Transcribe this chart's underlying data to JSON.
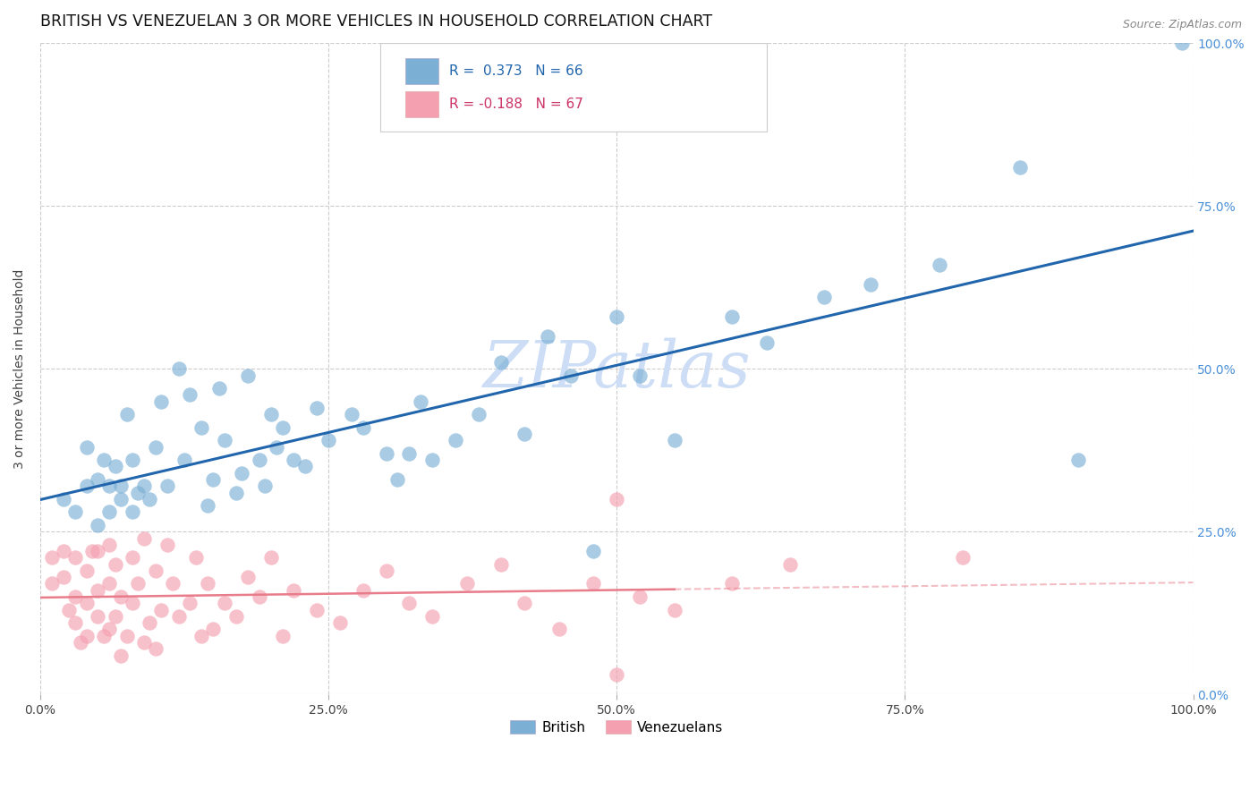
{
  "title": "BRITISH VS VENEZUELAN 3 OR MORE VEHICLES IN HOUSEHOLD CORRELATION CHART",
  "source": "Source: ZipAtlas.com",
  "ylabel": "3 or more Vehicles in Household",
  "x_tick_labels": [
    "0.0%",
    "25.0%",
    "50.0%",
    "75.0%",
    "100.0%"
  ],
  "y_tick_labels_right": [
    "0.0%",
    "25.0%",
    "50.0%",
    "75.0%",
    "100.0%"
  ],
  "xlim": [
    0.0,
    1.0
  ],
  "ylim": [
    0.0,
    1.0
  ],
  "british_R": 0.373,
  "british_N": 66,
  "venezuelan_R": -0.188,
  "venezuelan_N": 67,
  "british_scatter_color": "#7bafd4",
  "venezuelan_scatter_color": "#f4a0b0",
  "british_line_color": "#2166ac",
  "venezuelan_line_color": "#e87c8a",
  "watermark_color": "#ccddf5",
  "background_color": "#ffffff",
  "grid_color": "#cccccc",
  "title_fontsize": 12.5,
  "right_tick_color": "#4a90d9",
  "british_scatter_x": [
    0.02,
    0.03,
    0.04,
    0.04,
    0.05,
    0.05,
    0.055,
    0.06,
    0.06,
    0.065,
    0.07,
    0.07,
    0.075,
    0.08,
    0.08,
    0.085,
    0.09,
    0.095,
    0.1,
    0.105,
    0.11,
    0.12,
    0.125,
    0.13,
    0.14,
    0.145,
    0.15,
    0.155,
    0.16,
    0.17,
    0.175,
    0.18,
    0.19,
    0.195,
    0.2,
    0.205,
    0.21,
    0.22,
    0.23,
    0.24,
    0.25,
    0.27,
    0.28,
    0.3,
    0.31,
    0.32,
    0.33,
    0.34,
    0.36,
    0.38,
    0.4,
    0.42,
    0.44,
    0.46,
    0.48,
    0.5,
    0.52,
    0.55,
    0.6,
    0.63,
    0.68,
    0.72,
    0.78,
    0.85,
    0.9,
    0.99
  ],
  "british_scatter_y": [
    0.3,
    0.28,
    0.32,
    0.38,
    0.26,
    0.33,
    0.36,
    0.28,
    0.32,
    0.35,
    0.3,
    0.32,
    0.43,
    0.28,
    0.36,
    0.31,
    0.32,
    0.3,
    0.38,
    0.45,
    0.32,
    0.5,
    0.36,
    0.46,
    0.41,
    0.29,
    0.33,
    0.47,
    0.39,
    0.31,
    0.34,
    0.49,
    0.36,
    0.32,
    0.43,
    0.38,
    0.41,
    0.36,
    0.35,
    0.44,
    0.39,
    0.43,
    0.41,
    0.37,
    0.33,
    0.37,
    0.45,
    0.36,
    0.39,
    0.43,
    0.51,
    0.4,
    0.55,
    0.49,
    0.22,
    0.58,
    0.49,
    0.39,
    0.58,
    0.54,
    0.61,
    0.63,
    0.66,
    0.81,
    0.36,
    1.0
  ],
  "venezuelan_scatter_x": [
    0.01,
    0.01,
    0.02,
    0.02,
    0.025,
    0.03,
    0.03,
    0.03,
    0.035,
    0.04,
    0.04,
    0.04,
    0.045,
    0.05,
    0.05,
    0.05,
    0.055,
    0.06,
    0.06,
    0.06,
    0.065,
    0.065,
    0.07,
    0.07,
    0.075,
    0.08,
    0.08,
    0.085,
    0.09,
    0.09,
    0.095,
    0.1,
    0.1,
    0.105,
    0.11,
    0.115,
    0.12,
    0.13,
    0.135,
    0.14,
    0.145,
    0.15,
    0.16,
    0.17,
    0.18,
    0.19,
    0.2,
    0.21,
    0.22,
    0.24,
    0.26,
    0.28,
    0.3,
    0.32,
    0.34,
    0.37,
    0.4,
    0.42,
    0.45,
    0.48,
    0.5,
    0.52,
    0.55,
    0.6,
    0.65,
    0.8,
    0.5
  ],
  "venezuelan_scatter_y": [
    0.21,
    0.17,
    0.18,
    0.22,
    0.13,
    0.15,
    0.21,
    0.11,
    0.08,
    0.14,
    0.09,
    0.19,
    0.22,
    0.12,
    0.16,
    0.22,
    0.09,
    0.1,
    0.17,
    0.23,
    0.12,
    0.2,
    0.06,
    0.15,
    0.09,
    0.14,
    0.21,
    0.17,
    0.08,
    0.24,
    0.11,
    0.07,
    0.19,
    0.13,
    0.23,
    0.17,
    0.12,
    0.14,
    0.21,
    0.09,
    0.17,
    0.1,
    0.14,
    0.12,
    0.18,
    0.15,
    0.21,
    0.09,
    0.16,
    0.13,
    0.11,
    0.16,
    0.19,
    0.14,
    0.12,
    0.17,
    0.2,
    0.14,
    0.1,
    0.17,
    0.03,
    0.15,
    0.13,
    0.17,
    0.2,
    0.21,
    0.3
  ]
}
